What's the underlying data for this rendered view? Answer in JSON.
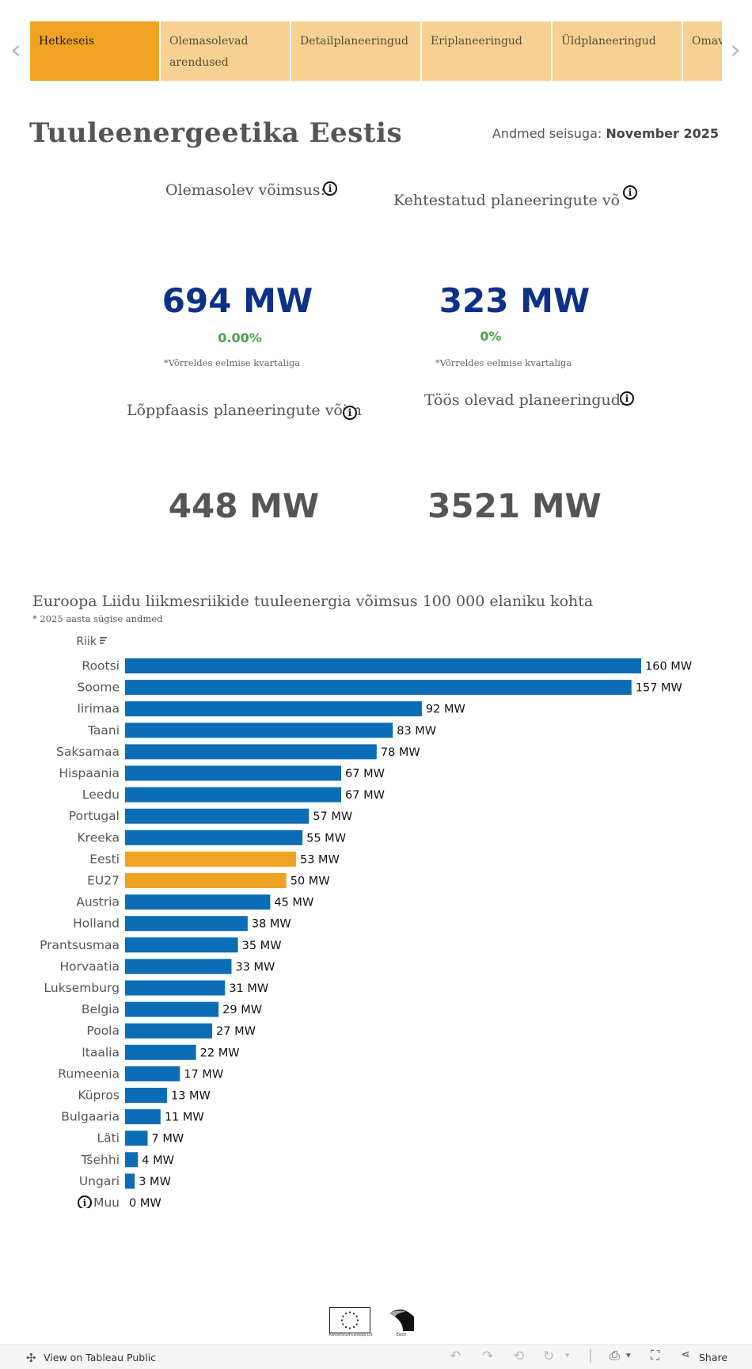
{
  "tabs": [
    {
      "label": "Hetkeseis",
      "active": true
    },
    {
      "label": "Olemasolevad arendused",
      "active": false
    },
    {
      "label": "Detailplaneeringud",
      "active": false
    },
    {
      "label": "Eriplaneeringud",
      "active": false
    },
    {
      "label": "Üldplaneeringud",
      "active": false
    },
    {
      "label": "Omav",
      "active": false
    }
  ],
  "page": {
    "title": "Tuuleenergeetika  Eestis",
    "as_of_label": "Andmed seisuga: ",
    "as_of_value": "November 2025"
  },
  "kpis": {
    "existing": {
      "label": "Olemasolev  võimsus:",
      "value": "694 MW",
      "change": "0.00%",
      "note": "*Võrreldes eelmise kvartaliga"
    },
    "approved": {
      "label": "Kehtestatud  planeeringute  võimsus",
      "value": "323 MW",
      "change": "0%",
      "note": "*Võrreldes eelmise kvartaliga"
    },
    "final": {
      "label": "Lõppfaasis  planeeringute  võimsus:",
      "value": "448 MW"
    },
    "in_progress": {
      "label": "Töös  olevad  planeeringud:",
      "value": "3521 MW"
    }
  },
  "info_glyph": "i",
  "chart_data": {
    "type": "bar",
    "orientation": "horizontal",
    "title": "Euroopa Liidu liikmesriikide tuuleenergia võimsus 100 000 elaniku kohta",
    "subtitle": "* 2025 aasta sügise andmed",
    "column_header": "Riik",
    "unit": "MW",
    "categories": [
      "Rootsi",
      "Soome",
      "Iirimaa",
      "Taani",
      "Saksamaa",
      "Hispaania",
      "Leedu",
      "Portugal",
      "Kreeka",
      "Eesti",
      "EU27",
      "Austria",
      "Holland",
      "Prantsusmaa",
      "Horvaatia",
      "Luksemburg",
      "Belgia",
      "Poola",
      "Itaalia",
      "Rumeenia",
      "Küpros",
      "Bulgaaria",
      "Läti",
      "Tšehhi",
      "Ungari",
      "Muu"
    ],
    "values": [
      160,
      157,
      92,
      83,
      78,
      67,
      67,
      57,
      55,
      53,
      50,
      45,
      38,
      35,
      33,
      31,
      29,
      27,
      22,
      17,
      13,
      11,
      7,
      4,
      3,
      0
    ],
    "labels": [
      "160 MW",
      "157 MW",
      "92 MW",
      "83 MW",
      "78 MW",
      "67 MW",
      "67 MW",
      "57 MW",
      "55 MW",
      "53 MW",
      "50 MW",
      "45 MW",
      "38 MW",
      "35 MW",
      "33 MW",
      "31 MW",
      "29 MW",
      "27 MW",
      "22 MW",
      "17 MW",
      "13 MW",
      "11 MW",
      "7 MW",
      "4 MW",
      "3 MW",
      "0 MW"
    ],
    "highlight": [
      "Eesti",
      "EU27"
    ],
    "xlim": [
      0,
      160
    ]
  },
  "colors": {
    "bar": "#0b6db6",
    "highlight": "#f0a323",
    "tab_active": "#f0a323",
    "tab": "#f6d191",
    "kpi_blue": "#0d3188",
    "change_green": "#4aa447"
  },
  "logos": {
    "eu_caption": "Rahastanud Euroopa Liit",
    "ee_caption": "Eesti"
  },
  "footer": {
    "view_label": "View on Tableau Public",
    "share_label": "Share"
  }
}
